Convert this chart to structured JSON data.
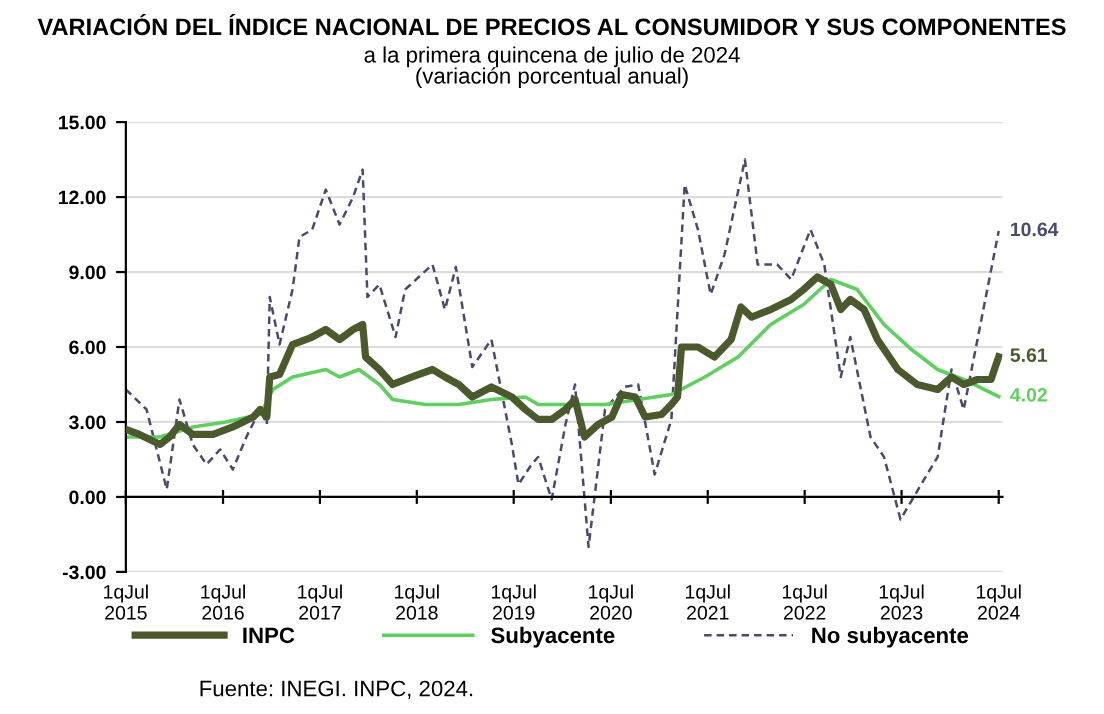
{
  "chart_data": {
    "type": "line",
    "title": "VARIACIÓN DEL ÍNDICE NACIONAL DE PRECIOS AL CONSUMIDOR Y SUS COMPONENTES",
    "subtitle": "a la primera quincena de julio de 2024\n(variación porcentual anual)",
    "xlim": [
      "2015-07-01",
      "2024-07-15"
    ],
    "xticks": [
      {
        "value": "2015-07-01",
        "label": "1qJul\n2015"
      },
      {
        "value": "2016-07-01",
        "label": "1qJul\n2016"
      },
      {
        "value": "2017-07-01",
        "label": "1qJul\n2017"
      },
      {
        "value": "2018-07-01",
        "label": "1qJul\n2018"
      },
      {
        "value": "2019-07-01",
        "label": "1qJul\n2019"
      },
      {
        "value": "2020-07-01",
        "label": "1qJul\n2020"
      },
      {
        "value": "2021-07-01",
        "label": "1qJul\n2021"
      },
      {
        "value": "2022-07-01",
        "label": "1qJul\n2022"
      },
      {
        "value": "2023-07-01",
        "label": "1qJul\n2023"
      },
      {
        "value": "2024-07-01",
        "label": "1qJul\n2024"
      }
    ],
    "ylim": [
      -3,
      15
    ],
    "yticks": [
      {
        "value": -3,
        "label": "-3.00"
      },
      {
        "value": 0,
        "label": "0.00"
      },
      {
        "value": 3,
        "label": "3.00"
      },
      {
        "value": 6,
        "label": "6.00"
      },
      {
        "value": 9,
        "label": "9.00"
      },
      {
        "value": 12,
        "label": "12.00"
      },
      {
        "value": 15,
        "label": "15.00"
      }
    ],
    "grid": "y",
    "legend": "bottom",
    "series": [
      {
        "name": "INPC",
        "color": "#4b5a2c",
        "line_style": "solid",
        "x": [
          "2015-07-01",
          "2015-08-21",
          "2015-11-07",
          "2015-12-13",
          "2016-01-19",
          "2016-03-09",
          "2016-05-25",
          "2016-08-07",
          "2016-10-23",
          "2016-11-18",
          "2016-12-13",
          "2016-12-24",
          "2017-01-30",
          "2017-03-20",
          "2017-06-02",
          "2017-07-23",
          "2017-09-13",
          "2017-11-03",
          "2017-12-09",
          "2017-12-20",
          "2018-02-10",
          "2018-04-01",
          "2018-06-13",
          "2018-08-29",
          "2018-10-15",
          "2018-12-06",
          "2019-01-26",
          "2019-04-08",
          "2019-06-24",
          "2019-08-14",
          "2019-10-01",
          "2019-11-21",
          "2020-01-12",
          "2020-02-17",
          "2020-03-24",
          "2020-05-14",
          "2020-07-05",
          "2020-08-11",
          "2020-10-01",
          "2020-11-07",
          "2021-01-08",
          "2021-02-14",
          "2021-03-09",
          "2021-03-24",
          "2021-05-25",
          "2021-07-26",
          "2021-09-27",
          "2021-11-03",
          "2021-12-13",
          "2022-02-23",
          "2022-05-11",
          "2022-06-27",
          "2022-08-18",
          "2022-10-08",
          "2022-11-14",
          "2022-12-20",
          "2023-02-10",
          "2023-04-01",
          "2023-06-17",
          "2023-08-29",
          "2023-11-14",
          "2024-01-05",
          "2024-02-20",
          "2024-04-12",
          "2024-06-02",
          "2024-07-01"
        ],
        "values": [
          2.7,
          2.5,
          2.1,
          2.4,
          2.9,
          2.5,
          2.5,
          2.8,
          3.2,
          3.5,
          3.2,
          4.8,
          4.9,
          6.1,
          6.4,
          6.7,
          6.3,
          6.7,
          6.9,
          5.6,
          5.1,
          4.5,
          4.8,
          5.1,
          4.8,
          4.5,
          4.0,
          4.4,
          4.0,
          3.5,
          3.1,
          3.1,
          3.5,
          3.9,
          2.4,
          2.9,
          3.2,
          4.1,
          4.0,
          3.2,
          3.3,
          3.7,
          4.0,
          6.0,
          6.0,
          5.6,
          6.3,
          7.6,
          7.2,
          7.5,
          7.9,
          8.3,
          8.8,
          8.5,
          7.5,
          7.9,
          7.5,
          6.3,
          5.1,
          4.5,
          4.3,
          4.8,
          4.5,
          4.7,
          4.7,
          5.61
        ]
      },
      {
        "name": "Subyacente",
        "color": "#5fcf5f",
        "line_style": "solid",
        "x": [
          "2015-07-01",
          "2015-11-07",
          "2016-03-09",
          "2016-07-12",
          "2016-11-18",
          "2017-01-05",
          "2017-03-20",
          "2017-07-23",
          "2017-09-13",
          "2017-11-25",
          "2018-02-10",
          "2018-04-01",
          "2018-08-03",
          "2018-12-06",
          "2019-04-08",
          "2019-08-14",
          "2019-10-01",
          "2020-02-06",
          "2020-06-09",
          "2020-10-12",
          "2021-02-14",
          "2021-06-20",
          "2021-10-23",
          "2022-02-23",
          "2022-06-27",
          "2022-10-08",
          "2023-01-15",
          "2023-04-26",
          "2023-08-07",
          "2023-11-14",
          "2024-02-20",
          "2024-07-01"
        ],
        "values": [
          2.4,
          2.4,
          2.8,
          3.0,
          3.3,
          4.3,
          4.8,
          5.1,
          4.8,
          5.1,
          4.5,
          3.9,
          3.7,
          3.7,
          3.9,
          4.0,
          3.7,
          3.7,
          3.7,
          3.9,
          4.1,
          4.8,
          5.6,
          6.9,
          7.7,
          8.7,
          8.3,
          6.9,
          5.9,
          5.1,
          4.7,
          4.02
        ]
      },
      {
        "name": "No subyacente",
        "color": "#4a4a6e",
        "line_style": "dashed",
        "x": [
          "2015-07-01",
          "2015-09-17",
          "2015-12-02",
          "2016-01-19",
          "2016-03-09",
          "2016-04-30",
          "2016-06-20",
          "2016-08-07",
          "2016-09-27",
          "2016-11-18",
          "2016-12-13",
          "2016-12-24",
          "2017-01-30",
          "2017-03-20",
          "2017-04-15",
          "2017-06-02",
          "2017-07-23",
          "2017-09-13",
          "2017-11-03",
          "2017-12-09",
          "2017-12-27",
          "2018-02-10",
          "2018-04-12",
          "2018-05-18",
          "2018-08-29",
          "2018-10-15",
          "2018-11-25",
          "2019-01-26",
          "2019-04-08",
          "2019-06-24",
          "2019-07-19",
          "2019-09-06",
          "2019-10-01",
          "2019-11-21",
          "2020-01-12",
          "2020-02-17",
          "2020-04-08",
          "2020-06-09",
          "2020-08-21",
          "2020-10-12",
          "2020-12-13",
          "2021-02-14",
          "2021-04-05",
          "2021-05-25",
          "2021-07-12",
          "2021-09-02",
          "2021-11-18",
          "2022-01-05",
          "2022-03-20",
          "2022-05-11",
          "2022-07-23",
          "2022-09-13",
          "2022-11-14",
          "2022-12-20",
          "2023-03-06",
          "2023-04-26",
          "2023-06-27",
          "2023-09-24",
          "2023-11-14",
          "2024-01-05",
          "2024-02-20",
          "2024-04-12",
          "2024-07-01"
        ],
        "values": [
          4.3,
          3.5,
          0.3,
          3.9,
          2.1,
          1.3,
          1.9,
          1.1,
          2.4,
          3.5,
          2.9,
          8.0,
          6.1,
          8.3,
          10.4,
          10.7,
          12.3,
          10.9,
          12.0,
          13.1,
          8.0,
          8.5,
          6.4,
          8.3,
          9.3,
          7.5,
          9.2,
          5.2,
          6.3,
          2.1,
          0.5,
          1.3,
          1.6,
          -0.1,
          2.9,
          4.5,
          -2.0,
          3.5,
          4.4,
          4.5,
          0.9,
          3.1,
          12.5,
          10.7,
          8.1,
          9.7,
          13.5,
          9.3,
          9.3,
          8.7,
          10.7,
          9.3,
          4.8,
          6.4,
          2.4,
          1.6,
          -0.9,
          0.7,
          1.6,
          5.1,
          3.5,
          6.3,
          10.64
        ]
      }
    ],
    "annotations": [
      {
        "text": "10.64",
        "x": "2024-07-01",
        "y": 10.64
      },
      {
        "text": "5.61",
        "x": "2024-07-01",
        "y": 5.61
      },
      {
        "text": "4.02",
        "x": "2024-07-01",
        "y": 4.02
      },
      "Fuente: INEGI. INPC, 2024."
    ]
  }
}
